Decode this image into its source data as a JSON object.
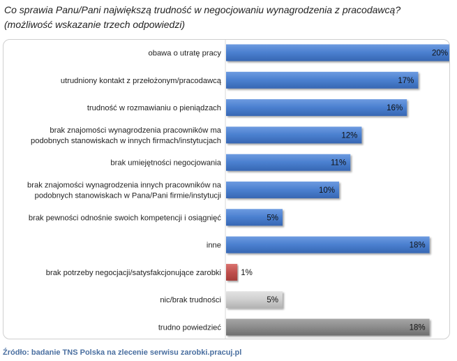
{
  "title": "Co sprawia Panu/Pani największą trudność w negocjowaniu wynagrodzenia z pracodawcą?",
  "subtitle": "(możliwość wskazanie trzech odpowiedzi)",
  "source": "Źródło: badanie TNS Polska na zlecenie serwisu zarobki.pracuj.pl",
  "colors": {
    "blue": "#4a7fcf",
    "red": "#c0504d",
    "light_gray": "#cfcfcf",
    "dark_gray": "#8c8c8c"
  },
  "chart_data": {
    "type": "bar",
    "orientation": "horizontal",
    "categories": [
      [
        "obawa o utratę pracy"
      ],
      [
        "utrudniony kontakt z przełożonym/pracodawcą"
      ],
      [
        "trudność w rozmawianiu o pieniądzach"
      ],
      [
        "brak znajomości wynagrodzenia pracowników ma",
        "podobnych stanowiskach w innych firmach/instytucjach"
      ],
      [
        "brak umiejętności negocjowania"
      ],
      [
        "brak znajomości wynagrodzenia innych pracowników na",
        "podobnych stanowiskach w Pana/Pani firmie/instytucji"
      ],
      [
        "brak pewności odnośnie swoich kompetencji i osiągnięć"
      ],
      [
        "inne"
      ],
      [
        "brak potrzeby negocjacji/satysfakcjonujące zarobki"
      ],
      [
        "nic/brak trudności"
      ],
      [
        "trudno powiedzieć"
      ]
    ],
    "values": [
      20,
      17,
      16,
      12,
      11,
      10,
      5,
      18,
      1,
      5,
      18
    ],
    "value_labels": [
      "20%",
      "17%",
      "16%",
      "12%",
      "11%",
      "10%",
      "5%",
      "18%",
      "1%",
      "5%",
      "18%"
    ],
    "bar_colors": [
      "blue",
      "blue",
      "blue",
      "blue",
      "blue",
      "blue",
      "blue",
      "blue",
      "red",
      "light_gray",
      "dark_gray"
    ],
    "xlim": [
      0,
      20
    ],
    "unit": "%",
    "grid": false,
    "legend": false
  }
}
